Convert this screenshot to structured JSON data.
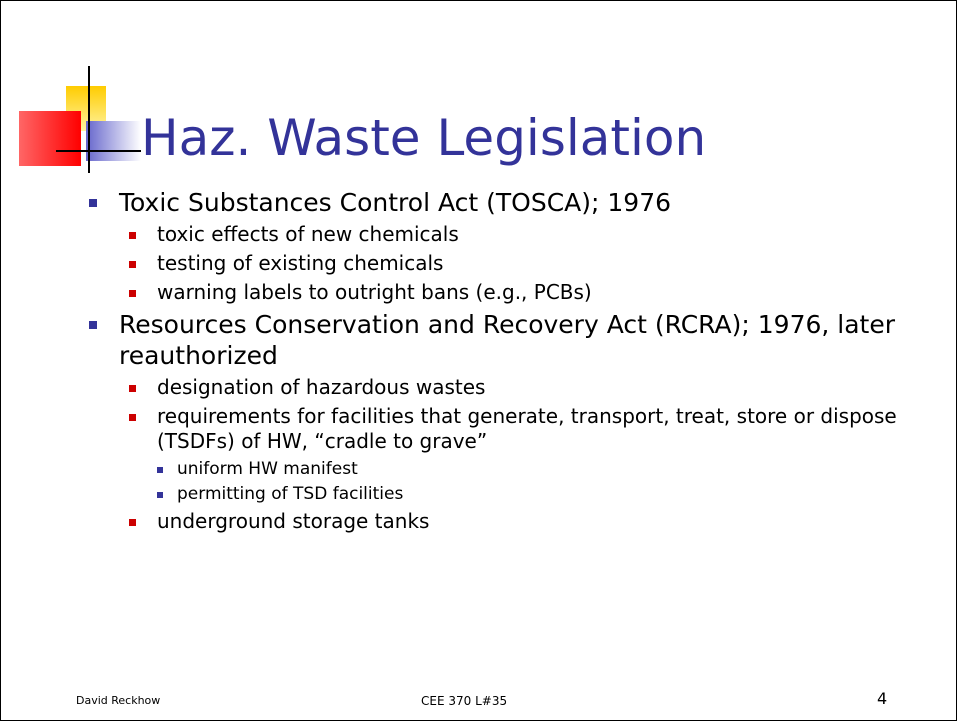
{
  "title": "Haz. Waste Legislation",
  "items": [
    {
      "text": "Toxic Substances Control Act (TOSCA); 1976",
      "children": [
        {
          "text": "toxic effects of new chemicals"
        },
        {
          "text": "testing of existing chemicals"
        },
        {
          "text": "warning labels to outright bans (e.g., PCBs)"
        }
      ]
    },
    {
      "text": "Resources Conservation and Recovery Act (RCRA); 1976, later reauthorized",
      "children": [
        {
          "text": "designation of hazardous wastes"
        },
        {
          "text": "requirements for facilities that generate, transport, treat, store or dispose (TSDFs) of HW, “cradle to grave”",
          "children": [
            {
              "text": "uniform HW manifest"
            },
            {
              "text": "permitting of TSD facilities"
            }
          ]
        },
        {
          "text": "underground storage tanks"
        }
      ]
    }
  ],
  "footer": {
    "author": "David Reckhow",
    "course": "CEE 370 L#35",
    "page": "4"
  }
}
